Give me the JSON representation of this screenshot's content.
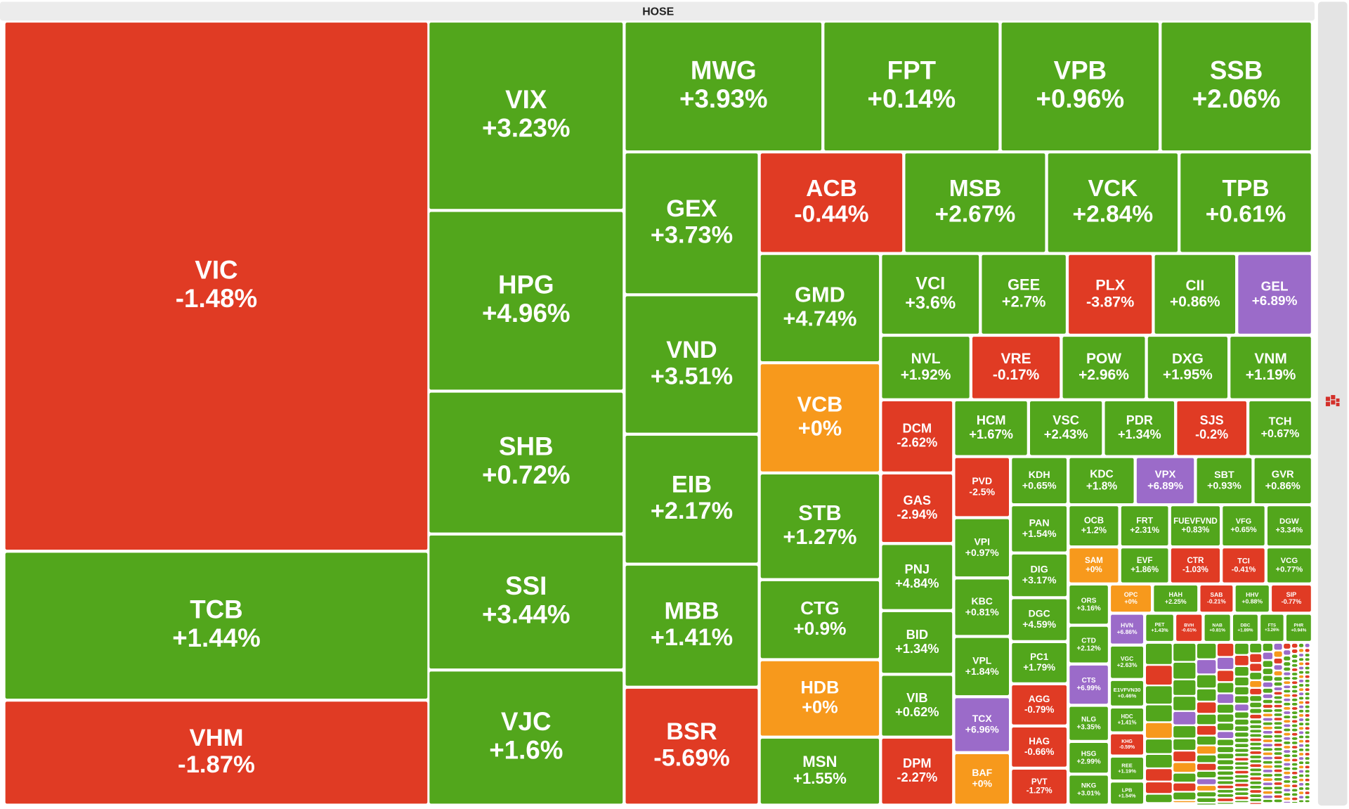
{
  "chart_data": {
    "type": "treemap",
    "title": "HOSE",
    "categories": [
      "VIC",
      "TCB",
      "VHM",
      "VIX",
      "HPG",
      "SHB",
      "SSI",
      "VJC",
      "MWG",
      "FPT",
      "VPB",
      "SSB",
      "GEX",
      "VND",
      "EIB",
      "MBB",
      "BSR",
      "ACB",
      "MSB",
      "VCK",
      "TPB",
      "GMD",
      "VCB",
      "STB",
      "CTG",
      "HDB",
      "MSN",
      "VCI",
      "GEE",
      "PLX",
      "CII",
      "GEL",
      "NVL",
      "VRE",
      "POW",
      "DXG",
      "VNM",
      "DCM",
      "HCM",
      "VSC",
      "PDR",
      "SJS",
      "TCH",
      "GAS",
      "PNJ",
      "BID",
      "VIB",
      "DPM",
      "PVD",
      "VPI",
      "KBC",
      "VPL",
      "TCX",
      "BAF",
      "KDH",
      "KDC",
      "VPX",
      "SBT",
      "GVR",
      "PAN",
      "DIG",
      "DGC",
      "PC1",
      "AGG",
      "HAG",
      "PVT",
      "OCB",
      "FRT",
      "FUEVFVND",
      "VFG",
      "DGW",
      "SAM",
      "EVF",
      "CTR",
      "TCI",
      "VCG",
      "ORS",
      "CTD",
      "CTS",
      "NLG",
      "HSG",
      "NKG",
      "OPC",
      "HAH",
      "SAB",
      "HHV",
      "SIP",
      "HVN",
      "VGC",
      "E1VFVN30",
      "HDC",
      "KHG",
      "REE",
      "LPB",
      "PET",
      "BVH",
      "NAB",
      "DBC",
      "FTS",
      "PHR"
    ],
    "values": [
      -1.48,
      1.44,
      -1.87,
      3.23,
      4.96,
      0.72,
      3.44,
      1.6,
      3.93,
      0.14,
      0.96,
      2.06,
      3.73,
      3.51,
      2.17,
      1.41,
      -5.69,
      -0.44,
      2.67,
      2.84,
      0.61,
      4.74,
      0,
      1.27,
      0.9,
      0,
      1.55,
      3.6,
      2.7,
      -3.87,
      0.86,
      6.89,
      1.92,
      -0.17,
      2.96,
      1.95,
      1.19,
      -2.62,
      1.67,
      2.43,
      1.34,
      -0.2,
      0.67,
      -2.94,
      4.84,
      1.34,
      0.62,
      -2.27,
      -2.5,
      0.97,
      0.81,
      1.84,
      6.96,
      0,
      0.65,
      1.8,
      6.89,
      0.93,
      0.86,
      1.54,
      3.17,
      4.59,
      1.79,
      -0.79,
      -0.66,
      -1.27,
      1.2,
      2.31,
      0.83,
      0.65,
      3.34,
      0,
      1.86,
      -1.03,
      -0.41,
      0.77,
      3.16,
      2.12,
      6.99,
      3.35,
      2.99,
      3.01,
      0,
      2.25,
      -0.21,
      0.88,
      -0.77,
      6.86,
      2.63,
      0.46,
      1.41,
      -0.59,
      1.19,
      1.54,
      1.43,
      -0.61,
      0.81,
      1.89,
      3.26,
      0.94
    ],
    "value_labels": [
      "-1.48%",
      "+1.44%",
      "-1.87%",
      "+3.23%",
      "+4.96%",
      "+0.72%",
      "+3.44%",
      "+1.6%",
      "+3.93%",
      "+0.14%",
      "+0.96%",
      "+2.06%",
      "+3.73%",
      "+3.51%",
      "+2.17%",
      "+1.41%",
      "-5.69%",
      "-0.44%",
      "+2.67%",
      "+2.84%",
      "+0.61%",
      "+4.74%",
      "+0%",
      "+1.27%",
      "+0.9%",
      "+0%",
      "+1.55%",
      "+3.6%",
      "+2.7%",
      "-3.87%",
      "+0.86%",
      "+6.89%",
      "+1.92%",
      "-0.17%",
      "+2.96%",
      "+1.95%",
      "+1.19%",
      "-2.62%",
      "+1.67%",
      "+2.43%",
      "+1.34%",
      "-0.2%",
      "+0.67%",
      "-2.94%",
      "+4.84%",
      "+1.34%",
      "+0.62%",
      "-2.27%",
      "-2.5%",
      "+0.97%",
      "+0.81%",
      "+1.84%",
      "+6.96%",
      "+0%",
      "+0.65%",
      "+1.8%",
      "+6.89%",
      "+0.93%",
      "+0.86%",
      "+1.54%",
      "+3.17%",
      "+4.59%",
      "+1.79%",
      "-0.79%",
      "-0.66%",
      "-1.27%",
      "+1.2%",
      "+2.31%",
      "+0.83%",
      "+0.65%",
      "+3.34%",
      "+0%",
      "+1.86%",
      "-1.03%",
      "-0.41%",
      "+0.77%",
      "+3.16%",
      "+2.12%",
      "+6.99%",
      "+3.35%",
      "+2.99%",
      "+3.01%",
      "+0%",
      "+2.25%",
      "-0.21%",
      "+0.88%",
      "-0.77%",
      "+6.86%",
      "+2.63%",
      "+0.46%",
      "+1.41%",
      "-0.59%",
      "+1.19%",
      "+1.54%",
      "+1.43%",
      "-0.61%",
      "+0.81%",
      "+1.89%",
      "+3.26%",
      "+0.94%"
    ],
    "colors": [
      "#e03b24",
      "#52a61c",
      "#e03b24",
      "#52a61c",
      "#52a61c",
      "#52a61c",
      "#52a61c",
      "#52a61c",
      "#52a61c",
      "#52a61c",
      "#52a61c",
      "#52a61c",
      "#52a61c",
      "#52a61c",
      "#52a61c",
      "#52a61c",
      "#e03b24",
      "#e03b24",
      "#52a61c",
      "#52a61c",
      "#52a61c",
      "#52a61c",
      "#f7991c",
      "#52a61c",
      "#52a61c",
      "#f7991c",
      "#52a61c",
      "#52a61c",
      "#52a61c",
      "#e03b24",
      "#52a61c",
      "#9b6bc9",
      "#52a61c",
      "#e03b24",
      "#52a61c",
      "#52a61c",
      "#52a61c",
      "#e03b24",
      "#52a61c",
      "#52a61c",
      "#52a61c",
      "#e03b24",
      "#52a61c",
      "#e03b24",
      "#52a61c",
      "#52a61c",
      "#52a61c",
      "#e03b24",
      "#e03b24",
      "#52a61c",
      "#52a61c",
      "#52a61c",
      "#9b6bc9",
      "#f7991c",
      "#52a61c",
      "#52a61c",
      "#9b6bc9",
      "#52a61c",
      "#52a61c",
      "#52a61c",
      "#52a61c",
      "#52a61c",
      "#52a61c",
      "#e03b24",
      "#e03b24",
      "#e03b24",
      "#52a61c",
      "#52a61c",
      "#52a61c",
      "#52a61c",
      "#52a61c",
      "#f7991c",
      "#52a61c",
      "#e03b24",
      "#e03b24",
      "#52a61c",
      "#52a61c",
      "#52a61c",
      "#9b6bc9",
      "#52a61c",
      "#52a61c",
      "#52a61c",
      "#f7991c",
      "#52a61c",
      "#e03b24",
      "#52a61c",
      "#e03b24",
      "#9b6bc9",
      "#52a61c",
      "#52a61c",
      "#52a61c",
      "#e03b24",
      "#52a61c",
      "#52a61c",
      "#52a61c",
      "#e03b24",
      "#52a61c",
      "#52a61c",
      "#52a61c",
      "#52a61c"
    ]
  }
}
